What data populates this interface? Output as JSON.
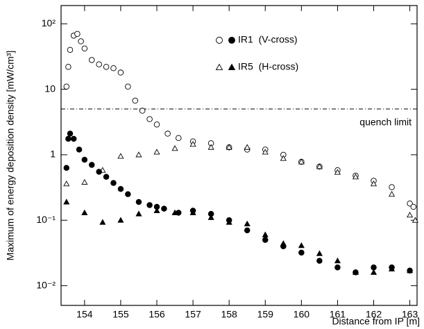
{
  "chart_data": {
    "type": "scatter",
    "xlabel": "Distance from IP [m]",
    "ylabel": "Maximum of energy deposition density [mW/cm³]",
    "log_y": true,
    "xlim": [
      153.35,
      163.2
    ],
    "ylim": [
      0.005,
      190
    ],
    "xticks": [
      154,
      155,
      156,
      157,
      158,
      159,
      160,
      161,
      162,
      163
    ],
    "yticks": [
      {
        "value": 0.01,
        "label": "10⁻²"
      },
      {
        "value": 0.1,
        "label": "10⁻¹"
      },
      1,
      10,
      {
        "value": 100,
        "label": "10²"
      }
    ],
    "reference_line": {
      "value": 5,
      "label": "quench limit"
    },
    "legend": [
      {
        "label": "IR1  (V-cross)",
        "markers": [
          {
            "shape": "circle",
            "fill": "open"
          },
          {
            "shape": "circle",
            "fill": "solid"
          }
        ]
      },
      {
        "label": "IR5  (H-cross)",
        "markers": [
          {
            "shape": "triangle",
            "fill": "open"
          },
          {
            "shape": "triangle",
            "fill": "solid"
          }
        ]
      }
    ],
    "series": [
      {
        "shape": "circle",
        "fill": "open",
        "color": "#000000",
        "x": [
          153.5,
          153.55,
          153.6,
          153.7,
          153.8,
          153.9,
          154.0,
          154.2,
          154.4,
          154.6,
          154.8,
          155.0,
          155.2,
          155.4,
          155.6,
          155.8,
          156.0,
          156.3,
          156.6,
          157.0,
          157.5,
          158.0,
          158.5,
          159.0,
          159.5,
          160.0,
          160.5,
          161.0,
          161.5,
          162.0,
          162.5,
          163.0,
          163.1
        ],
        "values": [
          11,
          22,
          40,
          66,
          70,
          54,
          42,
          28,
          24,
          22,
          21,
          18,
          11,
          6.7,
          4.7,
          3.5,
          2.9,
          2.1,
          1.8,
          1.6,
          1.5,
          1.3,
          1.2,
          1.2,
          1.0,
          0.78,
          0.66,
          0.58,
          0.48,
          0.4,
          0.32,
          0.18,
          0.16
        ]
      },
      {
        "shape": "triangle",
        "fill": "open",
        "color": "#000000",
        "x": [
          153.5,
          154.0,
          154.5,
          155.0,
          155.5,
          156.0,
          156.5,
          157.0,
          157.5,
          158.0,
          158.5,
          159.0,
          159.5,
          160.0,
          160.5,
          161.0,
          161.5,
          162.0,
          162.5,
          163.0,
          163.15
        ],
        "values": [
          0.36,
          0.38,
          0.58,
          0.95,
          1.0,
          1.1,
          1.25,
          1.45,
          1.3,
          1.3,
          1.3,
          1.1,
          0.88,
          0.78,
          0.66,
          0.54,
          0.46,
          0.36,
          0.25,
          0.12,
          0.1
        ]
      },
      {
        "shape": "circle",
        "fill": "solid",
        "color": "#000000",
        "x": [
          153.5,
          153.55,
          153.6,
          153.7,
          153.85,
          154.0,
          154.2,
          154.4,
          154.6,
          154.8,
          155.0,
          155.2,
          155.5,
          155.8,
          156.0,
          156.2,
          156.6,
          157.0,
          157.5,
          158.0,
          158.5,
          159.0,
          159.5,
          160.0,
          160.5,
          161.0,
          161.5,
          162.0,
          162.5,
          163.0
        ],
        "values": [
          0.63,
          1.75,
          2.1,
          1.75,
          1.2,
          0.84,
          0.7,
          0.55,
          0.46,
          0.37,
          0.3,
          0.25,
          0.19,
          0.17,
          0.16,
          0.15,
          0.13,
          0.14,
          0.125,
          0.1,
          0.07,
          0.05,
          0.04,
          0.032,
          0.024,
          0.019,
          0.016,
          0.019,
          0.019,
          0.017
        ]
      },
      {
        "shape": "triangle",
        "fill": "solid",
        "color": "#000000",
        "x": [
          153.5,
          154.0,
          154.5,
          155.0,
          155.5,
          156.0,
          156.5,
          157.0,
          157.5,
          158.0,
          158.5,
          159.0,
          159.5,
          160.0,
          160.5,
          161.0,
          161.5,
          162.0,
          162.5,
          163.0
        ],
        "values": [
          0.19,
          0.13,
          0.093,
          0.1,
          0.125,
          0.14,
          0.13,
          0.13,
          0.11,
          0.093,
          0.088,
          0.06,
          0.044,
          0.041,
          0.031,
          0.024,
          0.016,
          0.016,
          0.018,
          0.017
        ]
      }
    ]
  }
}
